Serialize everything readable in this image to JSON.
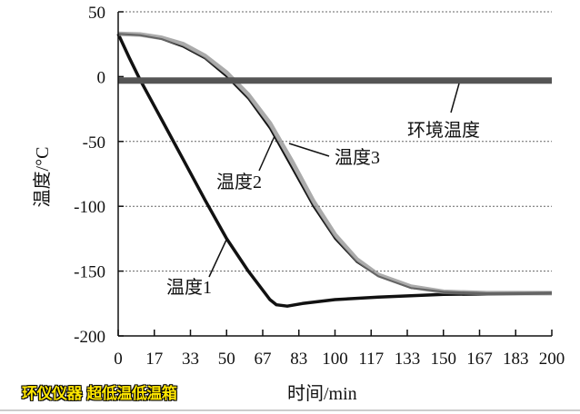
{
  "chart_data": {
    "type": "line",
    "title": "",
    "xlabel": "时间/min",
    "ylabel": "温度/°C",
    "xlim": [
      0,
      200
    ],
    "ylim": [
      -200,
      50
    ],
    "x_ticks": [
      "0",
      "17",
      "33",
      "50",
      "67",
      "83",
      "100",
      "117",
      "133",
      "150",
      "167",
      "183",
      "200"
    ],
    "y_ticks": [
      "50",
      "0",
      "-50",
      "-100",
      "-150",
      "-200"
    ],
    "grid": "horizontal dotted",
    "series": [
      {
        "name": "温度1",
        "color": "#111111",
        "x": [
          0,
          5,
          10,
          20,
          30,
          40,
          50,
          60,
          70,
          73,
          78,
          85,
          100,
          120,
          150,
          200
        ],
        "y": [
          33,
          15,
          -2,
          -33,
          -64,
          -95,
          -125,
          -150,
          -172,
          -176,
          -177,
          -175,
          -172,
          -170,
          -168,
          -167
        ]
      },
      {
        "name": "温度2",
        "color": "#111111",
        "x": [
          0,
          10,
          20,
          30,
          40,
          50,
          60,
          70,
          80,
          90,
          100,
          110,
          120,
          135,
          150,
          170,
          200
        ],
        "y": [
          33,
          32,
          29,
          23,
          14,
          0,
          -17,
          -40,
          -70,
          -100,
          -125,
          -143,
          -154,
          -163,
          -166,
          -167,
          -167
        ]
      },
      {
        "name": "温度3",
        "color": "#888888",
        "x": [
          0,
          10,
          20,
          30,
          40,
          50,
          60,
          70,
          80,
          90,
          100,
          110,
          120,
          135,
          150,
          170,
          200
        ],
        "y": [
          33,
          32.5,
          30,
          25,
          16,
          3,
          -14,
          -36,
          -65,
          -96,
          -122,
          -141,
          -153,
          -162,
          -166,
          -167,
          -167
        ]
      },
      {
        "name": "环境温度",
        "color": "#555555",
        "x": [
          0,
          200
        ],
        "y": [
          -3,
          -3
        ]
      }
    ]
  },
  "watermark": "环仪仪器 超低温低温箱"
}
